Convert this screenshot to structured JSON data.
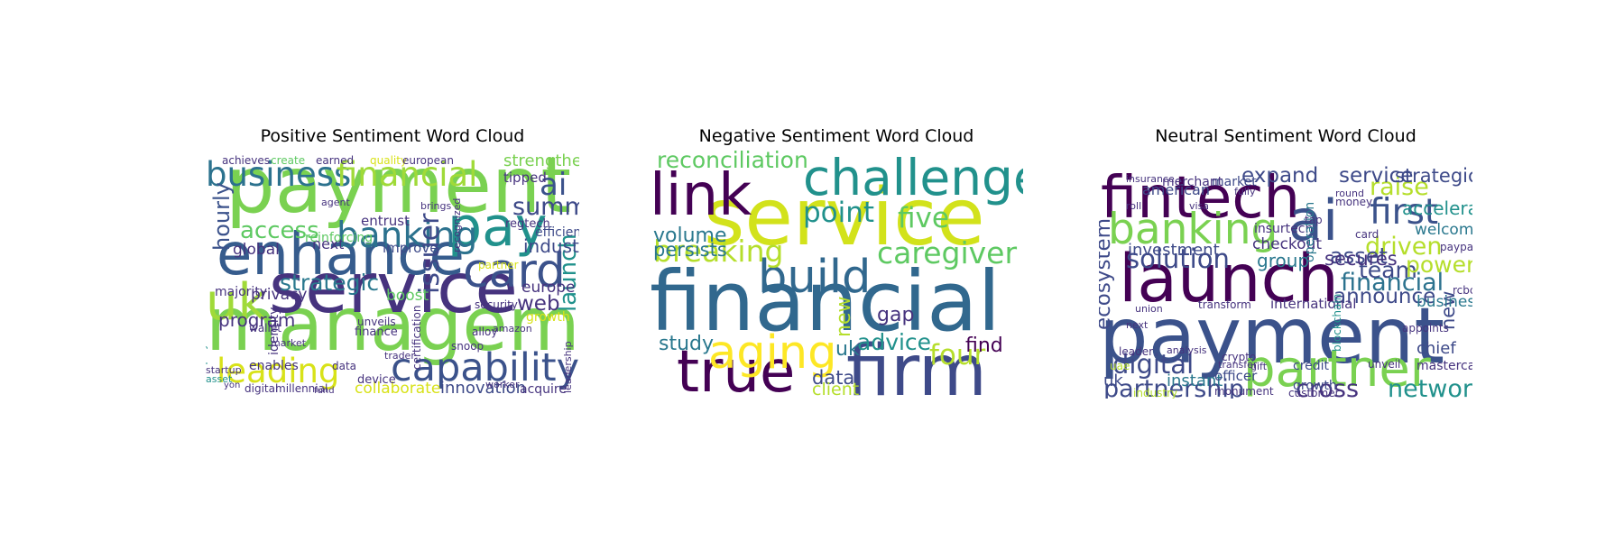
{
  "chart_data": [
    {
      "type": "wordcloud",
      "title": "Positive Sentiment Word Cloud",
      "words": [
        {
          "text": "payment",
          "weight": 1.0,
          "color": "#7ad151"
        },
        {
          "text": "management",
          "weight": 0.95,
          "color": "#7ad151"
        },
        {
          "text": "service",
          "weight": 0.9,
          "color": "#46337e"
        },
        {
          "text": "enhance",
          "weight": 0.75,
          "color": "#365c8d"
        },
        {
          "text": "pay",
          "weight": 0.7,
          "color": "#21918c"
        },
        {
          "text": "uk",
          "weight": 0.65,
          "color": "#a0da39"
        },
        {
          "text": "card",
          "weight": 0.6,
          "color": "#3b528b"
        },
        {
          "text": "capability",
          "weight": 0.5,
          "color": "#3b528b"
        },
        {
          "text": "banking",
          "weight": 0.45,
          "color": "#2c728e"
        },
        {
          "text": "business",
          "weight": 0.42,
          "color": "#2c728e"
        },
        {
          "text": "financial",
          "weight": 0.42,
          "color": "#a0da39"
        },
        {
          "text": "leading",
          "weight": 0.42,
          "color": "#d8e219"
        },
        {
          "text": "ai",
          "weight": 0.38,
          "color": "#3b528b"
        },
        {
          "text": "issuer",
          "weight": 0.34,
          "color": "#3e4a89"
        },
        {
          "text": "summit",
          "weight": 0.3,
          "color": "#3e4a89"
        },
        {
          "text": "launch",
          "weight": 0.28,
          "color": "#21918c"
        },
        {
          "text": "access",
          "weight": 0.28,
          "color": "#5ec962"
        },
        {
          "text": "strategic",
          "weight": 0.27,
          "color": "#2a788e"
        },
        {
          "text": "hourly",
          "weight": 0.26,
          "color": "#3b528b"
        },
        {
          "text": "web",
          "weight": 0.25,
          "color": "#46337e"
        },
        {
          "text": "program",
          "weight": 0.2,
          "color": "#46337e"
        },
        {
          "text": "industry",
          "weight": 0.2,
          "color": "#3e4a89"
        },
        {
          "text": "strengthening",
          "weight": 0.18,
          "color": "#7ad151"
        },
        {
          "text": "innovation",
          "weight": 0.18,
          "color": "#3e4a89"
        },
        {
          "text": "collaborate",
          "weight": 0.17,
          "color": "#d8e219"
        },
        {
          "text": "europe",
          "weight": 0.17,
          "color": "#46337e"
        },
        {
          "text": "global",
          "weight": 0.16,
          "color": "#46337e"
        },
        {
          "text": "privacy",
          "weight": 0.16,
          "color": "#46337e"
        },
        {
          "text": "boost",
          "weight": 0.16,
          "color": "#5ec962"
        },
        {
          "text": "next",
          "weight": 0.15,
          "color": "#46337e"
        },
        {
          "text": "entrust",
          "weight": 0.14,
          "color": "#46337e"
        },
        {
          "text": "improve",
          "weight": 0.14,
          "color": "#3e4a89"
        },
        {
          "text": "tipped",
          "weight": 0.14,
          "color": "#46337e"
        },
        {
          "text": "efficiency",
          "weight": 0.13,
          "color": "#3e4a89"
        },
        {
          "text": "growth",
          "weight": 0.13,
          "color": "#d8e219"
        },
        {
          "text": "acquire",
          "weight": 0.13,
          "color": "#46337e"
        },
        {
          "text": "majority",
          "weight": 0.13,
          "color": "#46337e"
        },
        {
          "text": "identity",
          "weight": 0.12,
          "color": "#46337e"
        },
        {
          "text": "enables",
          "weight": 0.12,
          "color": "#46337e"
        },
        {
          "text": "reinforcing",
          "weight": 0.12,
          "color": "#5ec962"
        },
        {
          "text": "regtech",
          "weight": 0.11,
          "color": "#46337e"
        },
        {
          "text": "finance",
          "weight": 0.11,
          "color": "#46337e"
        },
        {
          "text": "device",
          "weight": 0.11,
          "color": "#46337e"
        },
        {
          "text": "unveils",
          "weight": 0.1,
          "color": "#46337e"
        },
        {
          "text": "achieves",
          "weight": 0.1,
          "color": "#46337e"
        },
        {
          "text": "create",
          "weight": 0.1,
          "color": "#5ec962"
        },
        {
          "text": "earned",
          "weight": 0.1,
          "color": "#46337e"
        },
        {
          "text": "quality",
          "weight": 0.1,
          "color": "#d8e219"
        },
        {
          "text": "european",
          "weight": 0.1,
          "color": "#46337e"
        },
        {
          "text": "digital",
          "weight": 0.09,
          "color": "#46337e"
        },
        {
          "text": "millennial",
          "weight": 0.09,
          "color": "#46337e"
        },
        {
          "text": "data",
          "weight": 0.09,
          "color": "#46337e"
        },
        {
          "text": "market",
          "weight": 0.08,
          "color": "#46337e"
        },
        {
          "text": "startup",
          "weight": 0.08,
          "color": "#46337e"
        },
        {
          "text": "asset",
          "weight": 0.08,
          "color": "#21918c"
        },
        {
          "text": "simplify",
          "weight": 0.08,
          "color": "#21918c"
        },
        {
          "text": "agent",
          "weight": 0.08,
          "color": "#46337e"
        },
        {
          "text": "amazon",
          "weight": 0.08,
          "color": "#46337e"
        },
        {
          "text": "alloy",
          "weight": 0.1,
          "color": "#46337e"
        },
        {
          "text": "security",
          "weight": 0.1,
          "color": "#46337e"
        },
        {
          "text": "partner",
          "weight": 0.1,
          "color": "#d8e219"
        },
        {
          "text": "wallet",
          "weight": 0.09,
          "color": "#46337e"
        },
        {
          "text": "certification",
          "weight": 0.09,
          "color": "#46337e"
        },
        {
          "text": "snoop",
          "weight": 0.09,
          "color": "#46337e"
        },
        {
          "text": "trader",
          "weight": 0.08,
          "color": "#46337e"
        },
        {
          "text": "brings",
          "weight": 0.08,
          "color": "#46337e"
        },
        {
          "text": "recognized",
          "weight": 0.08,
          "color": "#46337e"
        },
        {
          "text": "leadership",
          "weight": 0.08,
          "color": "#46337e"
        },
        {
          "text": "worker",
          "weight": 0.08,
          "color": "#46337e"
        },
        {
          "text": "fund",
          "weight": 0.07,
          "color": "#46337e"
        },
        {
          "text": "yon",
          "weight": 0.07,
          "color": "#46337e"
        }
      ]
    },
    {
      "type": "wordcloud",
      "title": "Negative Sentiment Word Cloud",
      "words": [
        {
          "text": "financial",
          "weight": 1.0,
          "color": "#31688e"
        },
        {
          "text": "service",
          "weight": 0.95,
          "color": "#d2e21b"
        },
        {
          "text": "firm",
          "weight": 0.85,
          "color": "#3e4a89"
        },
        {
          "text": "true",
          "weight": 0.7,
          "color": "#440154"
        },
        {
          "text": "link",
          "weight": 0.7,
          "color": "#440154"
        },
        {
          "text": "challenge",
          "weight": 0.6,
          "color": "#21918c"
        },
        {
          "text": "build",
          "weight": 0.55,
          "color": "#31688e"
        },
        {
          "text": "aging",
          "weight": 0.55,
          "color": "#fde725"
        },
        {
          "text": "caregiver",
          "weight": 0.35,
          "color": "#5ec962"
        },
        {
          "text": "breaking",
          "weight": 0.35,
          "color": "#b5de2b"
        },
        {
          "text": "point",
          "weight": 0.33,
          "color": "#21918c"
        },
        {
          "text": "five",
          "weight": 0.33,
          "color": "#5ec962"
        },
        {
          "text": "four",
          "weight": 0.33,
          "color": "#b5de2b"
        },
        {
          "text": "reconciliation",
          "weight": 0.25,
          "color": "#5ec962"
        },
        {
          "text": "advice",
          "weight": 0.25,
          "color": "#21918c"
        },
        {
          "text": "volume",
          "weight": 0.22,
          "color": "#2a788e"
        },
        {
          "text": "persists",
          "weight": 0.2,
          "color": "#2a788e"
        },
        {
          "text": "study",
          "weight": 0.22,
          "color": "#2a788e"
        },
        {
          "text": "find",
          "weight": 0.22,
          "color": "#440154"
        },
        {
          "text": "gap",
          "weight": 0.22,
          "color": "#46337e"
        },
        {
          "text": "uk",
          "weight": 0.22,
          "color": "#2a788e"
        },
        {
          "text": "new",
          "weight": 0.22,
          "color": "#b5de2b"
        },
        {
          "text": "data",
          "weight": 0.2,
          "color": "#3e4a89"
        },
        {
          "text": "client",
          "weight": 0.18,
          "color": "#b5de2b"
        }
      ]
    },
    {
      "type": "wordcloud",
      "title": "Neutral Sentiment Word Cloud",
      "words": [
        {
          "text": "payment",
          "weight": 1.0,
          "color": "#3b528b"
        },
        {
          "text": "launch",
          "weight": 0.85,
          "color": "#440154"
        },
        {
          "text": "fintech",
          "weight": 0.75,
          "color": "#440154"
        },
        {
          "text": "ai",
          "weight": 0.72,
          "color": "#3b528b"
        },
        {
          "text": "partner",
          "weight": 0.65,
          "color": "#7ad151"
        },
        {
          "text": "banking",
          "weight": 0.55,
          "color": "#7ad151"
        },
        {
          "text": "first",
          "weight": 0.45,
          "color": "#3b528b"
        },
        {
          "text": "solution",
          "weight": 0.32,
          "color": "#3e4a89"
        },
        {
          "text": "digital",
          "weight": 0.32,
          "color": "#3e4a89"
        },
        {
          "text": "partnership",
          "weight": 0.3,
          "color": "#3e4a89"
        },
        {
          "text": "raise",
          "weight": 0.3,
          "color": "#b5de2b"
        },
        {
          "text": "driven",
          "weight": 0.3,
          "color": "#b5de2b"
        },
        {
          "text": "financial",
          "weight": 0.3,
          "color": "#2c728e"
        },
        {
          "text": "network",
          "weight": 0.3,
          "color": "#21918c"
        },
        {
          "text": "cross",
          "weight": 0.3,
          "color": "#46337e"
        },
        {
          "text": "team",
          "weight": 0.27,
          "color": "#3e4a89"
        },
        {
          "text": "powered",
          "weight": 0.27,
          "color": "#b5de2b"
        },
        {
          "text": "asset",
          "weight": 0.26,
          "color": "#3e4a89"
        },
        {
          "text": "announce",
          "weight": 0.25,
          "color": "#3e4a89"
        },
        {
          "text": "ecosystem",
          "weight": 0.25,
          "color": "#3e4a89"
        },
        {
          "text": "expand",
          "weight": 0.25,
          "color": "#3e4a89"
        },
        {
          "text": "service",
          "weight": 0.24,
          "color": "#3e4a89"
        },
        {
          "text": "strategic",
          "weight": 0.22,
          "color": "#3e4a89"
        },
        {
          "text": "secures",
          "weight": 0.22,
          "color": "#46337e"
        },
        {
          "text": "new",
          "weight": 0.22,
          "color": "#3e4a89"
        },
        {
          "text": "group",
          "weight": 0.2,
          "color": "#2a788e"
        },
        {
          "text": "accelerate",
          "weight": 0.2,
          "color": "#21918c"
        },
        {
          "text": "welcome",
          "weight": 0.17,
          "color": "#2a788e"
        },
        {
          "text": "business",
          "weight": 0.17,
          "color": "#2a788e"
        },
        {
          "text": "investment",
          "weight": 0.18,
          "color": "#3e4a89"
        },
        {
          "text": "instant",
          "weight": 0.18,
          "color": "#2a788e"
        },
        {
          "text": "checkout",
          "weight": 0.17,
          "color": "#46337e"
        },
        {
          "text": "chief",
          "weight": 0.18,
          "color": "#3e4a89"
        },
        {
          "text": "uk",
          "weight": 0.18,
          "color": "#3e4a89"
        },
        {
          "text": "american",
          "weight": 0.15,
          "color": "#3e4a89"
        },
        {
          "text": "international",
          "weight": 0.14,
          "color": "#46337e"
        },
        {
          "text": "officer",
          "weight": 0.14,
          "color": "#3e4a89"
        },
        {
          "text": "growth",
          "weight": 0.13,
          "color": "#3e4a89"
        },
        {
          "text": "credit",
          "weight": 0.13,
          "color": "#3e4a89"
        },
        {
          "text": "market",
          "weight": 0.13,
          "color": "#3e4a89"
        },
        {
          "text": "merchant",
          "weight": 0.12,
          "color": "#46337e"
        },
        {
          "text": "insurtech",
          "weight": 0.12,
          "color": "#46337e"
        },
        {
          "text": "operation",
          "weight": 0.12,
          "color": "#2a788e"
        },
        {
          "text": "mastercard",
          "weight": 0.12,
          "color": "#46337e"
        },
        {
          "text": "transform",
          "weight": 0.1,
          "color": "#46337e"
        },
        {
          "text": "leader",
          "weight": 0.1,
          "color": "#46337e"
        },
        {
          "text": "crypto",
          "weight": 0.1,
          "color": "#46337e"
        },
        {
          "text": "card",
          "weight": 0.1,
          "color": "#46337e"
        },
        {
          "text": "blockchain",
          "weight": 0.1,
          "color": "#21918c"
        },
        {
          "text": "appoints",
          "weight": 0.1,
          "color": "#46337e"
        },
        {
          "text": "money",
          "weight": 0.1,
          "color": "#46337e"
        },
        {
          "text": "tap",
          "weight": 0.1,
          "color": "#46337e"
        },
        {
          "text": "paypal",
          "weight": 0.1,
          "color": "#46337e"
        },
        {
          "text": "rcbc",
          "weight": 0.09,
          "color": "#46337e"
        },
        {
          "text": "unveil",
          "weight": 0.09,
          "color": "#46337e"
        },
        {
          "text": "customer",
          "weight": 0.09,
          "color": "#46337e"
        },
        {
          "text": "industry",
          "weight": 0.09,
          "color": "#b5de2b"
        },
        {
          "text": "monument",
          "weight": 0.09,
          "color": "#46337e"
        },
        {
          "text": "uae",
          "weight": 0.09,
          "color": "#b5de2b"
        },
        {
          "text": "analysis",
          "weight": 0.08,
          "color": "#46337e"
        },
        {
          "text": "union",
          "weight": 0.08,
          "color": "#46337e"
        },
        {
          "text": "round",
          "weight": 0.08,
          "color": "#46337e"
        },
        {
          "text": "insurance",
          "weight": 0.08,
          "color": "#46337e"
        },
        {
          "text": "fully",
          "weight": 0.08,
          "color": "#46337e"
        },
        {
          "text": "roll",
          "weight": 0.08,
          "color": "#46337e"
        },
        {
          "text": "visa",
          "weight": 0.08,
          "color": "#46337e"
        },
        {
          "text": "gift",
          "weight": 0.08,
          "color": "#46337e"
        },
        {
          "text": "transfer",
          "weight": 0.08,
          "color": "#46337e"
        },
        {
          "text": "next",
          "weight": 0.08,
          "color": "#46337e"
        }
      ]
    }
  ]
}
